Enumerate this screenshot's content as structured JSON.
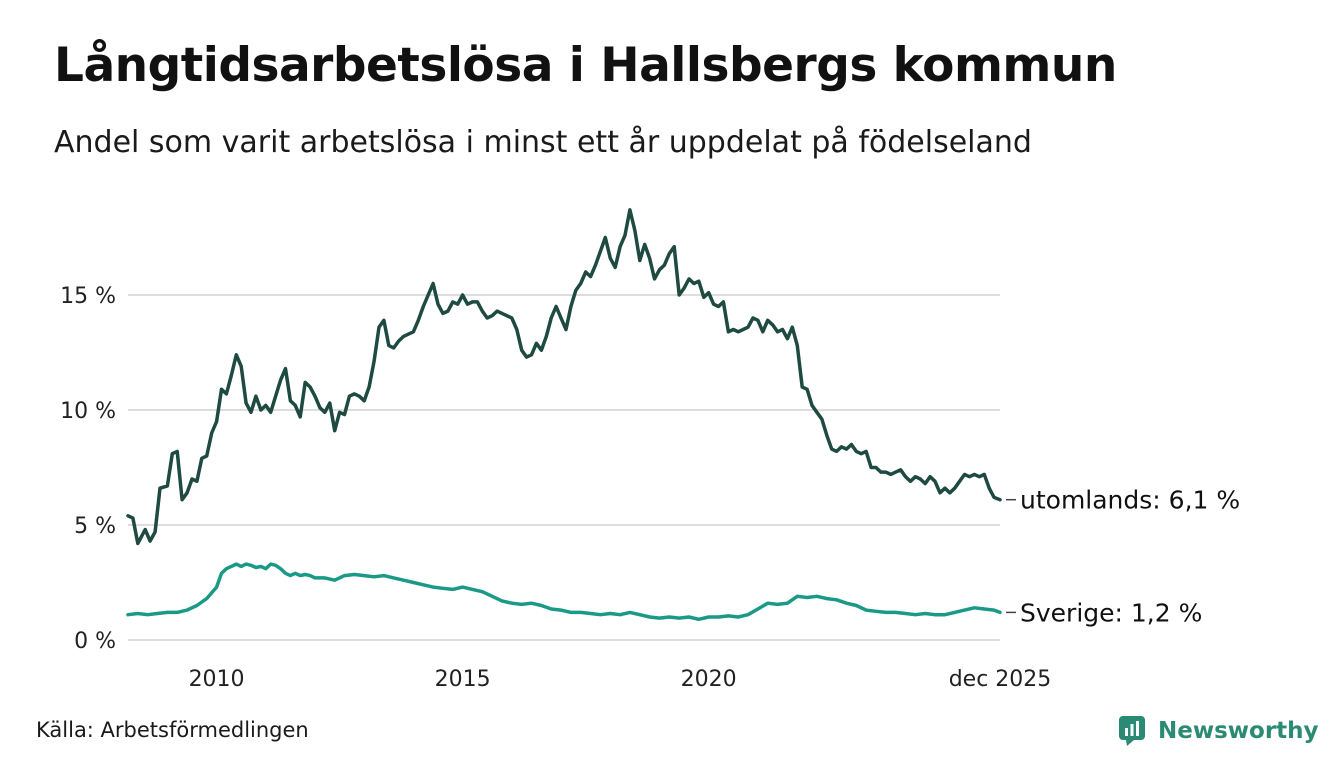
{
  "header": {
    "title": "Långtidsarbetslösa i Hallsbergs kommun",
    "subtitle": "Andel som varit arbetslösa i minst ett år uppdelat på födelseland"
  },
  "footer": {
    "source": "Källa: Arbetsförmedlingen",
    "brand": "Newsworthy"
  },
  "colors": {
    "utomlands": "#1e4a42",
    "sverige": "#1a9a86",
    "grid": "#dddddd",
    "brand": "#2b8a74"
  },
  "chart_data": {
    "type": "line",
    "title": "Långtidsarbetslösa i Hallsbergs kommun",
    "xlabel": "",
    "ylabel": "",
    "xlim": [
      2008.2,
      2025.92
    ],
    "ylim": [
      0,
      20
    ],
    "grid": true,
    "x_ticks": [
      {
        "value": 2010,
        "label": "2010"
      },
      {
        "value": 2015,
        "label": "2015"
      },
      {
        "value": 2020,
        "label": "2020"
      },
      {
        "value": 2025.92,
        "label": "dec 2025"
      }
    ],
    "y_ticks": [
      {
        "value": 0,
        "label": "0 %"
      },
      {
        "value": 5,
        "label": "5 %"
      },
      {
        "value": 10,
        "label": "10 %"
      },
      {
        "value": 15,
        "label": "15 %"
      }
    ],
    "series": [
      {
        "name": "utomlands",
        "end_label": "utomlands: 6,1 %",
        "color": "#1e4a42",
        "points": [
          [
            2008.2,
            5.4
          ],
          [
            2008.3,
            5.3
          ],
          [
            2008.4,
            4.2
          ],
          [
            2008.55,
            4.8
          ],
          [
            2008.65,
            4.3
          ],
          [
            2008.75,
            4.7
          ],
          [
            2008.85,
            6.6
          ],
          [
            2009.0,
            6.7
          ],
          [
            2009.1,
            8.1
          ],
          [
            2009.2,
            8.2
          ],
          [
            2009.3,
            6.1
          ],
          [
            2009.4,
            6.4
          ],
          [
            2009.5,
            7.0
          ],
          [
            2009.6,
            6.9
          ],
          [
            2009.7,
            7.9
          ],
          [
            2009.8,
            8.0
          ],
          [
            2009.9,
            9.0
          ],
          [
            2010.0,
            9.5
          ],
          [
            2010.1,
            10.9
          ],
          [
            2010.2,
            10.7
          ],
          [
            2010.3,
            11.5
          ],
          [
            2010.4,
            12.4
          ],
          [
            2010.5,
            11.9
          ],
          [
            2010.6,
            10.3
          ],
          [
            2010.7,
            9.9
          ],
          [
            2010.8,
            10.6
          ],
          [
            2010.9,
            10.0
          ],
          [
            2011.0,
            10.2
          ],
          [
            2011.1,
            9.9
          ],
          [
            2011.2,
            10.6
          ],
          [
            2011.3,
            11.3
          ],
          [
            2011.4,
            11.8
          ],
          [
            2011.5,
            10.4
          ],
          [
            2011.6,
            10.2
          ],
          [
            2011.7,
            9.7
          ],
          [
            2011.8,
            11.2
          ],
          [
            2011.9,
            11.0
          ],
          [
            2012.0,
            10.6
          ],
          [
            2012.1,
            10.1
          ],
          [
            2012.2,
            9.9
          ],
          [
            2012.3,
            10.3
          ],
          [
            2012.4,
            9.1
          ],
          [
            2012.5,
            9.9
          ],
          [
            2012.6,
            9.8
          ],
          [
            2012.7,
            10.6
          ],
          [
            2012.8,
            10.7
          ],
          [
            2012.9,
            10.6
          ],
          [
            2013.0,
            10.4
          ],
          [
            2013.1,
            11.0
          ],
          [
            2013.2,
            12.1
          ],
          [
            2013.3,
            13.6
          ],
          [
            2013.4,
            13.9
          ],
          [
            2013.5,
            12.8
          ],
          [
            2013.6,
            12.7
          ],
          [
            2013.7,
            13.0
          ],
          [
            2013.8,
            13.2
          ],
          [
            2013.9,
            13.3
          ],
          [
            2014.0,
            13.4
          ],
          [
            2014.1,
            13.9
          ],
          [
            2014.2,
            14.5
          ],
          [
            2014.3,
            15.0
          ],
          [
            2014.4,
            15.5
          ],
          [
            2014.5,
            14.6
          ],
          [
            2014.6,
            14.2
          ],
          [
            2014.7,
            14.3
          ],
          [
            2014.8,
            14.7
          ],
          [
            2014.9,
            14.6
          ],
          [
            2015.0,
            15.0
          ],
          [
            2015.1,
            14.6
          ],
          [
            2015.2,
            14.7
          ],
          [
            2015.3,
            14.7
          ],
          [
            2015.4,
            14.3
          ],
          [
            2015.5,
            14.0
          ],
          [
            2015.6,
            14.1
          ],
          [
            2015.7,
            14.3
          ],
          [
            2015.8,
            14.2
          ],
          [
            2015.9,
            14.1
          ],
          [
            2016.0,
            14.0
          ],
          [
            2016.1,
            13.5
          ],
          [
            2016.2,
            12.6
          ],
          [
            2016.3,
            12.3
          ],
          [
            2016.4,
            12.4
          ],
          [
            2016.5,
            12.9
          ],
          [
            2016.6,
            12.6
          ],
          [
            2016.7,
            13.2
          ],
          [
            2016.8,
            14.0
          ],
          [
            2016.9,
            14.5
          ],
          [
            2017.0,
            14.0
          ],
          [
            2017.1,
            13.5
          ],
          [
            2017.2,
            14.5
          ],
          [
            2017.3,
            15.2
          ],
          [
            2017.4,
            15.5
          ],
          [
            2017.5,
            16.0
          ],
          [
            2017.6,
            15.8
          ],
          [
            2017.7,
            16.3
          ],
          [
            2017.8,
            16.9
          ],
          [
            2017.9,
            17.5
          ],
          [
            2018.0,
            16.6
          ],
          [
            2018.1,
            16.2
          ],
          [
            2018.2,
            17.1
          ],
          [
            2018.3,
            17.6
          ],
          [
            2018.4,
            18.7
          ],
          [
            2018.5,
            17.8
          ],
          [
            2018.6,
            16.5
          ],
          [
            2018.7,
            17.2
          ],
          [
            2018.8,
            16.6
          ],
          [
            2018.9,
            15.7
          ],
          [
            2019.0,
            16.1
          ],
          [
            2019.1,
            16.3
          ],
          [
            2019.2,
            16.8
          ],
          [
            2019.3,
            17.1
          ],
          [
            2019.4,
            15.0
          ],
          [
            2019.5,
            15.3
          ],
          [
            2019.6,
            15.7
          ],
          [
            2019.7,
            15.5
          ],
          [
            2019.8,
            15.6
          ],
          [
            2019.9,
            14.9
          ],
          [
            2020.0,
            15.1
          ],
          [
            2020.1,
            14.6
          ],
          [
            2020.2,
            14.5
          ],
          [
            2020.3,
            14.7
          ],
          [
            2020.4,
            13.4
          ],
          [
            2020.5,
            13.5
          ],
          [
            2020.6,
            13.4
          ],
          [
            2020.7,
            13.5
          ],
          [
            2020.8,
            13.6
          ],
          [
            2020.9,
            14.0
          ],
          [
            2021.0,
            13.9
          ],
          [
            2021.1,
            13.4
          ],
          [
            2021.2,
            13.9
          ],
          [
            2021.3,
            13.7
          ],
          [
            2021.4,
            13.4
          ],
          [
            2021.5,
            13.5
          ],
          [
            2021.6,
            13.1
          ],
          [
            2021.7,
            13.6
          ],
          [
            2021.8,
            12.8
          ],
          [
            2021.9,
            11.0
          ],
          [
            2022.0,
            10.9
          ],
          [
            2022.1,
            10.2
          ],
          [
            2022.2,
            9.9
          ],
          [
            2022.3,
            9.6
          ],
          [
            2022.4,
            8.9
          ],
          [
            2022.5,
            8.3
          ],
          [
            2022.6,
            8.2
          ],
          [
            2022.7,
            8.4
          ],
          [
            2022.8,
            8.3
          ],
          [
            2022.9,
            8.5
          ],
          [
            2023.0,
            8.2
          ],
          [
            2023.1,
            8.1
          ],
          [
            2023.2,
            8.2
          ],
          [
            2023.3,
            7.5
          ],
          [
            2023.4,
            7.5
          ],
          [
            2023.5,
            7.3
          ],
          [
            2023.6,
            7.3
          ],
          [
            2023.7,
            7.2
          ],
          [
            2023.8,
            7.3
          ],
          [
            2023.9,
            7.4
          ],
          [
            2024.0,
            7.1
          ],
          [
            2024.1,
            6.9
          ],
          [
            2024.2,
            7.1
          ],
          [
            2024.3,
            7.0
          ],
          [
            2024.4,
            6.8
          ],
          [
            2024.5,
            7.1
          ],
          [
            2024.6,
            6.9
          ],
          [
            2024.7,
            6.4
          ],
          [
            2024.8,
            6.6
          ],
          [
            2024.9,
            6.4
          ],
          [
            2025.0,
            6.6
          ],
          [
            2025.1,
            6.9
          ],
          [
            2025.2,
            7.2
          ],
          [
            2025.3,
            7.1
          ],
          [
            2025.4,
            7.2
          ],
          [
            2025.5,
            7.1
          ],
          [
            2025.6,
            7.2
          ],
          [
            2025.7,
            6.6
          ],
          [
            2025.8,
            6.2
          ],
          [
            2025.92,
            6.1
          ]
        ]
      },
      {
        "name": "Sverige",
        "end_label": "Sverige: 1,2 %",
        "color": "#1a9a86",
        "points": [
          [
            2008.2,
            1.1
          ],
          [
            2008.4,
            1.15
          ],
          [
            2008.6,
            1.1
          ],
          [
            2008.8,
            1.15
          ],
          [
            2009.0,
            1.2
          ],
          [
            2009.2,
            1.2
          ],
          [
            2009.4,
            1.3
          ],
          [
            2009.6,
            1.5
          ],
          [
            2009.8,
            1.8
          ],
          [
            2010.0,
            2.3
          ],
          [
            2010.1,
            2.9
          ],
          [
            2010.2,
            3.1
          ],
          [
            2010.3,
            3.2
          ],
          [
            2010.4,
            3.3
          ],
          [
            2010.5,
            3.2
          ],
          [
            2010.6,
            3.3
          ],
          [
            2010.7,
            3.25
          ],
          [
            2010.8,
            3.15
          ],
          [
            2010.9,
            3.2
          ],
          [
            2011.0,
            3.1
          ],
          [
            2011.1,
            3.3
          ],
          [
            2011.2,
            3.25
          ],
          [
            2011.3,
            3.1
          ],
          [
            2011.4,
            2.9
          ],
          [
            2011.5,
            2.8
          ],
          [
            2011.6,
            2.9
          ],
          [
            2011.7,
            2.8
          ],
          [
            2011.8,
            2.85
          ],
          [
            2011.9,
            2.8
          ],
          [
            2012.0,
            2.7
          ],
          [
            2012.2,
            2.7
          ],
          [
            2012.4,
            2.6
          ],
          [
            2012.6,
            2.8
          ],
          [
            2012.8,
            2.85
          ],
          [
            2013.0,
            2.8
          ],
          [
            2013.2,
            2.75
          ],
          [
            2013.4,
            2.8
          ],
          [
            2013.6,
            2.7
          ],
          [
            2013.8,
            2.6
          ],
          [
            2014.0,
            2.5
          ],
          [
            2014.2,
            2.4
          ],
          [
            2014.4,
            2.3
          ],
          [
            2014.6,
            2.25
          ],
          [
            2014.8,
            2.2
          ],
          [
            2015.0,
            2.3
          ],
          [
            2015.2,
            2.2
          ],
          [
            2015.4,
            2.1
          ],
          [
            2015.6,
            1.9
          ],
          [
            2015.8,
            1.7
          ],
          [
            2016.0,
            1.6
          ],
          [
            2016.2,
            1.55
          ],
          [
            2016.4,
            1.6
          ],
          [
            2016.6,
            1.5
          ],
          [
            2016.8,
            1.35
          ],
          [
            2017.0,
            1.3
          ],
          [
            2017.2,
            1.2
          ],
          [
            2017.4,
            1.2
          ],
          [
            2017.6,
            1.15
          ],
          [
            2017.8,
            1.1
          ],
          [
            2018.0,
            1.15
          ],
          [
            2018.2,
            1.1
          ],
          [
            2018.4,
            1.2
          ],
          [
            2018.6,
            1.1
          ],
          [
            2018.8,
            1.0
          ],
          [
            2019.0,
            0.95
          ],
          [
            2019.2,
            1.0
          ],
          [
            2019.4,
            0.95
          ],
          [
            2019.6,
            1.0
          ],
          [
            2019.8,
            0.9
          ],
          [
            2020.0,
            1.0
          ],
          [
            2020.2,
            1.0
          ],
          [
            2020.4,
            1.05
          ],
          [
            2020.6,
            1.0
          ],
          [
            2020.8,
            1.1
          ],
          [
            2021.0,
            1.35
          ],
          [
            2021.2,
            1.6
          ],
          [
            2021.4,
            1.55
          ],
          [
            2021.6,
            1.6
          ],
          [
            2021.8,
            1.9
          ],
          [
            2022.0,
            1.85
          ],
          [
            2022.2,
            1.9
          ],
          [
            2022.4,
            1.8
          ],
          [
            2022.6,
            1.75
          ],
          [
            2022.8,
            1.6
          ],
          [
            2023.0,
            1.5
          ],
          [
            2023.2,
            1.3
          ],
          [
            2023.4,
            1.25
          ],
          [
            2023.6,
            1.2
          ],
          [
            2023.8,
            1.2
          ],
          [
            2024.0,
            1.15
          ],
          [
            2024.2,
            1.1
          ],
          [
            2024.4,
            1.15
          ],
          [
            2024.6,
            1.1
          ],
          [
            2024.8,
            1.1
          ],
          [
            2025.0,
            1.2
          ],
          [
            2025.2,
            1.3
          ],
          [
            2025.4,
            1.4
          ],
          [
            2025.6,
            1.35
          ],
          [
            2025.8,
            1.3
          ],
          [
            2025.92,
            1.2
          ]
        ]
      }
    ]
  }
}
